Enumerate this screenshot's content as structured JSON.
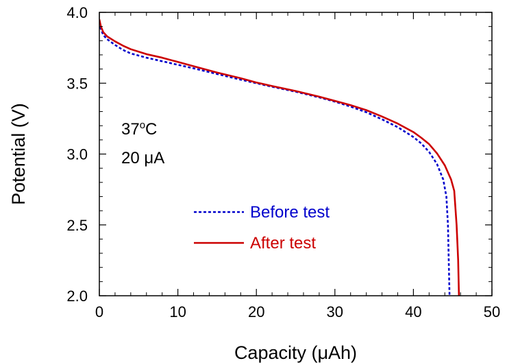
{
  "chart_data": {
    "type": "line",
    "xlabel": "Capacity (μAh)",
    "ylabel": "Potential (V)",
    "xlim": [
      0,
      50
    ],
    "ylim": [
      2.0,
      4.0
    ],
    "x_ticks": [
      0,
      10,
      20,
      30,
      40,
      50
    ],
    "y_ticks": [
      2.0,
      2.5,
      3.0,
      3.5,
      4.0
    ],
    "x_tick_labels": [
      "0",
      "10",
      "20",
      "30",
      "40",
      "50"
    ],
    "y_tick_labels": [
      "2.0",
      "2.5",
      "3.0",
      "3.5",
      "4.0"
    ],
    "grid": false,
    "legend_position": "center-right",
    "annotations": {
      "temperature_value": "37",
      "temperature_degree": "o",
      "temperature_unit": "C",
      "current": "20 μA"
    },
    "series": [
      {
        "name": "Before test",
        "color": "#0000cc",
        "style": "dotted",
        "points": [
          [
            0,
            3.93
          ],
          [
            0.2,
            3.88
          ],
          [
            0.5,
            3.84
          ],
          [
            1,
            3.81
          ],
          [
            2,
            3.77
          ],
          [
            3,
            3.735
          ],
          [
            4,
            3.71
          ],
          [
            6,
            3.68
          ],
          [
            8,
            3.655
          ],
          [
            10,
            3.63
          ],
          [
            12,
            3.605
          ],
          [
            15,
            3.565
          ],
          [
            18,
            3.525
          ],
          [
            20,
            3.5
          ],
          [
            22,
            3.475
          ],
          [
            25,
            3.44
          ],
          [
            28,
            3.4
          ],
          [
            30,
            3.37
          ],
          [
            32,
            3.335
          ],
          [
            34,
            3.295
          ],
          [
            36,
            3.245
          ],
          [
            38,
            3.19
          ],
          [
            40,
            3.12
          ],
          [
            41,
            3.075
          ],
          [
            42,
            3.015
          ],
          [
            43,
            2.93
          ],
          [
            43.8,
            2.82
          ],
          [
            44.2,
            2.7
          ],
          [
            44.4,
            2.5
          ],
          [
            44.5,
            2.25
          ],
          [
            44.6,
            2.0
          ]
        ]
      },
      {
        "name": "After test",
        "color": "#cc0000",
        "style": "solid",
        "points": [
          [
            0,
            3.95
          ],
          [
            0.2,
            3.9
          ],
          [
            0.5,
            3.86
          ],
          [
            1,
            3.83
          ],
          [
            2,
            3.795
          ],
          [
            3,
            3.765
          ],
          [
            4,
            3.74
          ],
          [
            6,
            3.705
          ],
          [
            8,
            3.68
          ],
          [
            10,
            3.65
          ],
          [
            12,
            3.62
          ],
          [
            15,
            3.575
          ],
          [
            18,
            3.535
          ],
          [
            20,
            3.505
          ],
          [
            22,
            3.48
          ],
          [
            25,
            3.445
          ],
          [
            28,
            3.405
          ],
          [
            30,
            3.375
          ],
          [
            32,
            3.345
          ],
          [
            34,
            3.31
          ],
          [
            36,
            3.265
          ],
          [
            38,
            3.215
          ],
          [
            40,
            3.155
          ],
          [
            41,
            3.115
          ],
          [
            42,
            3.07
          ],
          [
            43,
            3.005
          ],
          [
            44,
            2.92
          ],
          [
            44.8,
            2.82
          ],
          [
            45.2,
            2.74
          ],
          [
            45.5,
            2.5
          ],
          [
            45.7,
            2.25
          ],
          [
            45.8,
            2.0
          ]
        ]
      }
    ]
  }
}
